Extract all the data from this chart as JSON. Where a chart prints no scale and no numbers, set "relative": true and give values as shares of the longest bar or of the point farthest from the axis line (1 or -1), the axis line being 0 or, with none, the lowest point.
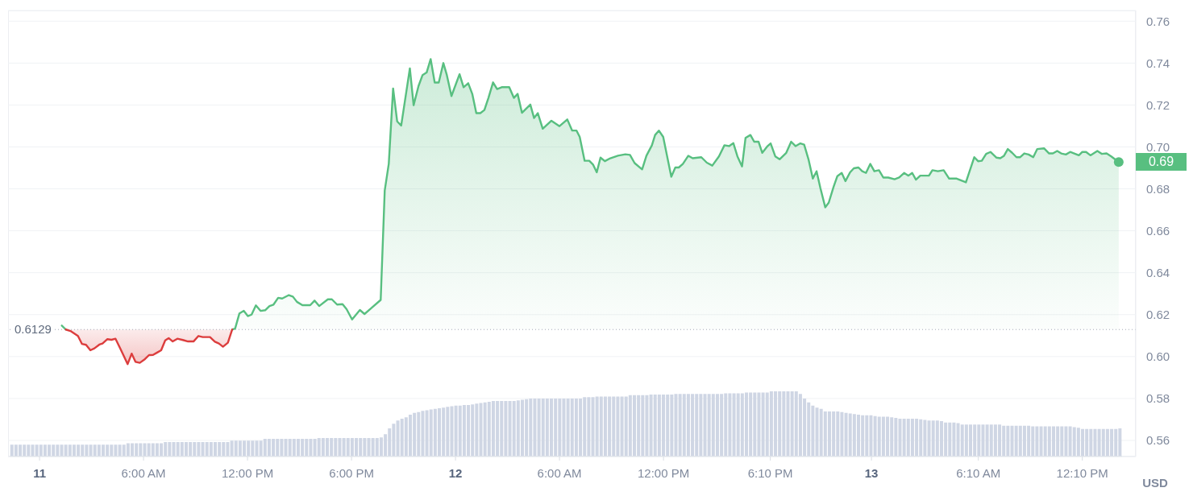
{
  "chart_data": [
    {
      "type": "area",
      "ylabel": "USD",
      "xlim": [
        "--01-10T22:11",
        "--01-13T15:15"
      ],
      "ylim": [
        0.5523,
        0.7651
      ],
      "xticks": [
        {
          "value": "--01-11T00:00",
          "label": "11"
        },
        {
          "value": "--01-11T06:00",
          "label": "6:00 AM"
        },
        {
          "value": "--01-11T12:00",
          "label": "12:00 PM"
        },
        {
          "value": "--01-11T18:00",
          "label": "6:00 PM"
        },
        {
          "value": "--01-12T00:00",
          "label": "12"
        },
        {
          "value": "--01-12T06:00",
          "label": "6:00 AM"
        },
        {
          "value": "--01-12T12:00",
          "label": "12:00 PM"
        },
        {
          "value": "--01-12T18:10",
          "label": "6:10 PM"
        },
        {
          "value": "--01-13T00:00",
          "label": "13"
        },
        {
          "value": "--01-13T06:10",
          "label": "6:10 AM"
        },
        {
          "value": "--01-13T12:10",
          "label": "12:10 PM"
        }
      ],
      "yticks": [
        0.56,
        0.58,
        {
          "value": 0.6,
          "label": "0.60"
        },
        0.62,
        0.64,
        0.66,
        0.68,
        {
          "value": 0.7,
          "label": "0.70"
        },
        0.72,
        0.74,
        0.76
      ],
      "grid": "y",
      "ref_lines": [
        {
          "axis": "y",
          "value": 0.6129,
          "label": "0.6129",
          "line_style": "dotted",
          "color": "#a3a9b6"
        }
      ],
      "annotations": [
        "0.69"
      ],
      "series": [
        {
          "color": "#58bf80",
          "x": [
            "--01-11T11:07",
            "--01-11T11:17",
            "--01-11T11:32",
            "--01-11T11:47",
            "--01-11T12:01",
            "--01-11T12:14",
            "--01-11T12:29",
            "--01-11T12:45",
            "--01-11T13:01",
            "--01-11T13:16",
            "--01-11T13:30",
            "--01-11T13:46",
            "--01-11T14:00",
            "--01-11T14:23",
            "--01-11T14:37",
            "--01-11T14:51",
            "--01-11T15:10",
            "--01-11T15:37",
            "--01-11T15:52",
            "--01-11T16:08",
            "--01-11T16:38",
            "--01-11T16:52",
            "--01-11T17:10",
            "--01-11T17:29",
            "--01-11T17:43",
            "--01-11T18:02",
            "--01-11T18:29",
            "--01-11T18:45",
            "--01-11T19:07",
            "--01-11T19:41",
            "--01-11T19:55",
            "--01-11T20:09",
            "--01-11T20:24",
            "--01-11T20:38",
            "--01-11T20:52",
            "--01-11T21:22",
            "--01-11T21:35",
            "--01-11T21:52",
            "--01-11T22:06",
            "--01-11T22:20",
            "--01-11T22:34",
            "--01-11T22:48",
            "--01-11T23:02",
            "--01-11T23:18",
            "--01-11T23:30",
            "--01-11T23:46",
            "--01-12T00:14",
            "--01-12T00:28",
            "--01-12T00:44",
            "--01-12T00:58",
            "--01-12T01:12",
            "--01-12T01:26",
            "--01-12T01:40",
            "--01-12T01:54",
            "--01-12T02:10",
            "--01-12T02:24",
            "--01-12T02:40",
            "--01-12T03:06",
            "--01-12T03:22",
            "--01-12T03:35",
            "--01-12T03:50",
            "--01-12T04:19",
            "--01-12T04:32",
            "--01-12T04:45",
            "--01-12T05:02",
            "--01-12T05:32",
            "--01-12T06:00",
            "--01-12T06:27",
            "--01-12T06:44",
            "--01-12T06:59",
            "--01-12T07:10",
            "--01-12T07:27",
            "--01-12T07:43",
            "--01-12T07:56",
            "--01-12T08:09",
            "--01-12T08:22",
            "--01-12T08:37",
            "--01-12T08:56",
            "--01-12T09:22",
            "--01-12T09:48",
            "--01-12T10:04",
            "--01-12T10:20",
            "--01-12T10:46",
            "--01-12T11:01",
            "--01-12T11:20",
            "--01-12T11:31",
            "--01-12T11:44",
            "--01-12T11:59",
            "--01-12T12:27",
            "--01-12T12:41",
            "--01-12T12:53",
            "--01-12T13:07",
            "--01-12T13:26",
            "--01-12T13:41",
            "--01-12T14:11",
            "--01-12T14:30",
            "--01-12T14:49",
            "--01-12T15:12",
            "--01-12T15:31",
            "--01-12T15:47",
            "--01-12T16:02",
            "--01-12T16:16",
            "--01-12T16:32",
            "--01-12T16:44",
            "--01-12T17:01",
            "--01-12T17:14",
            "--01-12T17:29",
            "--01-12T17:42",
            "--01-12T17:59",
            "--01-12T18:11",
            "--01-12T18:27",
            "--01-12T18:42",
            "--01-12T19:05",
            "--01-12T19:22",
            "--01-12T19:37",
            "--01-12T19:54",
            "--01-12T20:07",
            "--01-12T20:22",
            "--01-12T20:37",
            "--01-12T20:50",
            "--01-12T21:03",
            "--01-12T21:20",
            "--01-12T21:32",
            "--01-12T21:49",
            "--01-12T22:02",
            "--01-12T22:17",
            "--01-12T22:30",
            "--01-12T22:46",
            "--01-12T22:59",
            "--01-12T23:15",
            "--01-12T23:28",
            "--01-12T23:41",
            "--01-12T23:56",
            "--01-13T00:10",
            "--01-13T00:26",
            "--01-13T00:41",
            "--01-13T00:58",
            "--01-13T01:20",
            "--01-13T01:36",
            "--01-13T01:53",
            "--01-13T02:08",
            "--01-13T02:21",
            "--01-13T02:34",
            "--01-13T02:49",
            "--01-13T03:19",
            "--01-13T03:31",
            "--01-13T03:50",
            "--01-13T04:10",
            "--01-13T04:29",
            "--01-13T04:55",
            "--01-13T05:27",
            "--01-13T05:56",
            "--01-13T06:09",
            "--01-13T06:22",
            "--01-13T06:37",
            "--01-13T06:52",
            "--01-13T07:13",
            "--01-13T07:26",
            "--01-13T07:39",
            "--01-13T07:52",
            "--01-13T08:07",
            "--01-13T08:22",
            "--01-13T08:35",
            "--01-13T08:49",
            "--01-13T09:04",
            "--01-13T09:20",
            "--01-13T09:34",
            "--01-13T09:58",
            "--01-13T10:15",
            "--01-13T10:28",
            "--01-13T10:43",
            "--01-13T10:57",
            "--01-13T11:13",
            "--01-13T11:28",
            "--01-13T11:42",
            "--01-13T11:58",
            "--01-13T12:10",
            "--01-13T12:23",
            "--01-13T12:38",
            "--01-13T13:02",
            "--01-13T13:17",
            "--01-13T13:34",
            "--01-13T13:50",
            "--01-13T14:16"
          ],
          "values": [
            0.6129,
            0.6133,
            0.6206,
            0.6218,
            0.6193,
            0.62,
            0.6244,
            0.6218,
            0.6221,
            0.6241,
            0.6248,
            0.628,
            0.6277,
            0.6293,
            0.6286,
            0.6261,
            0.6245,
            0.6245,
            0.6267,
            0.6241,
            0.6273,
            0.6273,
            0.6248,
            0.625,
            0.6226,
            0.6177,
            0.6222,
            0.6203,
            0.6229,
            0.627,
            0.6792,
            0.692,
            0.7279,
            0.7122,
            0.7102,
            0.7375,
            0.7199,
            0.7291,
            0.7343,
            0.7355,
            0.7419,
            0.7307,
            0.7307,
            0.74,
            0.7343,
            0.7243,
            0.7347,
            0.7285,
            0.7304,
            0.7253,
            0.7161,
            0.7161,
            0.7176,
            0.7234,
            0.7308,
            0.7276,
            0.7285,
            0.7285,
            0.7234,
            0.7253,
            0.7163,
            0.7202,
            0.7138,
            0.7161,
            0.7087,
            0.7125,
            0.7099,
            0.7131,
            0.7078,
            0.7078,
            0.7048,
            0.6934,
            0.6934,
            0.6916,
            0.6879,
            0.6949,
            0.6932,
            0.6946,
            0.6958,
            0.6965,
            0.6962,
            0.6923,
            0.6893,
            0.6958,
            0.7008,
            0.7057,
            0.7078,
            0.7048,
            0.6858,
            0.6902,
            0.6902,
            0.6919,
            0.6958,
            0.6946,
            0.6951,
            0.6925,
            0.6911,
            0.6955,
            0.7008,
            0.7004,
            0.7018,
            0.6955,
            0.6907,
            0.7043,
            0.7057,
            0.7025,
            0.7025,
            0.6972,
            0.7002,
            0.7017,
            0.6955,
            0.6941,
            0.6972,
            0.7025,
            0.7004,
            0.7017,
            0.7011,
            0.6941,
            0.6849,
            0.6884,
            0.6805,
            0.6712,
            0.6734,
            0.681,
            0.6861,
            0.6876,
            0.6837,
            0.6879,
            0.6898,
            0.6902,
            0.6884,
            0.6876,
            0.6919,
            0.6884,
            0.6889,
            0.6854,
            0.6854,
            0.6846,
            0.6854,
            0.6876,
            0.6863,
            0.6876,
            0.6844,
            0.6863,
            0.6863,
            0.6889,
            0.6884,
            0.6889,
            0.6849,
            0.6849,
            0.6831,
            0.6951,
            0.6932,
            0.6934,
            0.6967,
            0.6976,
            0.6949,
            0.6946,
            0.6958,
            0.699,
            0.6972,
            0.6951,
            0.6951,
            0.6969,
            0.6964,
            0.6951,
            0.699,
            0.6993,
            0.6969,
            0.6969,
            0.6981,
            0.6969,
            0.6964,
            0.6976,
            0.6969,
            0.696,
            0.6976,
            0.6976,
            0.696,
            0.6981,
            0.6967,
            0.6969,
            0.6955,
            0.6928
          ]
        },
        {
          "type": "line",
          "color": "#58bf80",
          "x": [
            "--01-11T01:17",
            "--01-11T01:31"
          ],
          "values": [
            0.6148,
            0.6129
          ]
        },
        {
          "type": "line",
          "color": "#dc3d3d",
          "x": [
            "--01-11T01:31",
            "--01-11T01:47",
            "--01-11T02:13",
            "--01-11T02:27",
            "--01-11T02:41",
            "--01-11T02:56",
            "--01-11T03:10",
            "--01-11T03:27",
            "--01-11T03:38",
            "--01-11T03:55",
            "--01-11T04:09",
            "--01-11T04:23",
            "--01-11T04:41",
            "--01-11T05:05",
            "--01-11T05:19",
            "--01-11T05:32",
            "--01-11T05:47",
            "--01-11T06:05",
            "--01-11T06:19",
            "--01-11T06:33",
            "--01-11T06:47",
            "--01-11T07:01",
            "--01-11T07:15",
            "--01-11T07:27",
            "--01-11T07:41",
            "--01-11T07:57",
            "--01-11T08:16",
            "--01-11T08:34",
            "--01-11T08:53",
            "--01-11T09:10",
            "--01-11T09:25",
            "--01-11T09:50",
            "--01-11T10:07",
            "--01-11T10:21",
            "--01-11T10:35",
            "--01-11T10:52",
            "--01-11T11:07"
          ],
          "values": [
            0.6129,
            0.6122,
            0.6098,
            0.606,
            0.6056,
            0.603,
            0.6039,
            0.6057,
            0.6062,
            0.6083,
            0.608,
            0.6085,
            0.6034,
            0.5964,
            0.6014,
            0.5975,
            0.597,
            0.5988,
            0.6007,
            0.6008,
            0.6019,
            0.603,
            0.6077,
            0.6088,
            0.6072,
            0.6085,
            0.6079,
            0.6072,
            0.6072,
            0.6098,
            0.6093,
            0.6093,
            0.6071,
            0.6062,
            0.6047,
            0.6066,
            0.6129
          ],
          "lower": [
            0.6129,
            0.6122,
            0.6098,
            0.606,
            0.6056,
            0.603,
            0.6039,
            0.6057,
            0.6062,
            0.6083,
            0.608,
            0.6085,
            0.6034,
            0.5964,
            0.6014,
            0.5975,
            0.597,
            0.5988,
            0.6007,
            0.6008,
            0.6019,
            0.603,
            0.6077,
            0.6088,
            0.6072,
            0.6085,
            0.6079,
            0.6072,
            0.6072,
            0.6098,
            0.6093,
            0.6093,
            0.6071,
            0.6062,
            0.6047,
            0.6066,
            0.6129
          ],
          "upper": [
            0.6129,
            0.6129,
            0.6129,
            0.6129,
            0.6129,
            0.6129,
            0.6129,
            0.6129,
            0.6129,
            0.6129,
            0.6129,
            0.6129,
            0.6129,
            0.6129,
            0.6129,
            0.6129,
            0.6129,
            0.6129,
            0.6129,
            0.6129,
            0.6129,
            0.6129,
            0.6129,
            0.6129,
            0.6129,
            0.6129,
            0.6129,
            0.6129,
            0.6129,
            0.6129,
            0.6129,
            0.6129,
            0.6129,
            0.6129,
            0.6129,
            0.6129,
            0.6129
          ]
        },
        {
          "type": "scatter",
          "color": "#58bf80",
          "marker": "circle",
          "x": [
            "--01-13T14:16"
          ],
          "values": [
            0.6928
          ]
        }
      ]
    },
    {
      "type": "bar",
      "relative": true,
      "tick_labels": false,
      "color": "#cfd6e4",
      "categories": [
        null,
        null,
        null,
        null,
        null,
        null,
        null,
        null,
        null,
        null,
        null,
        null,
        null,
        null,
        null,
        null,
        null,
        null,
        null,
        null,
        null,
        null,
        null,
        null,
        null,
        null,
        null,
        null,
        null,
        null,
        null,
        null,
        null,
        null,
        null,
        null,
        null,
        null,
        null,
        null,
        null,
        null,
        null,
        null,
        null,
        null,
        null,
        null,
        null,
        null,
        null,
        null,
        null,
        null,
        null,
        null,
        null,
        null,
        null,
        null,
        null,
        null,
        null,
        null,
        null,
        null,
        null,
        null,
        null,
        null,
        null,
        null,
        null,
        null,
        null,
        null,
        null,
        null,
        null,
        null,
        null,
        null,
        null,
        null,
        null,
        null,
        null,
        null,
        null,
        null,
        null,
        null,
        null,
        null,
        null,
        null,
        null,
        null,
        null,
        null,
        null,
        null,
        null,
        null,
        null,
        null,
        null,
        null,
        null,
        null,
        null,
        null,
        null,
        null,
        null,
        null,
        null,
        null,
        null,
        null,
        null,
        null,
        null,
        null,
        null,
        null,
        null,
        null,
        null,
        null,
        null,
        null,
        null,
        null,
        null,
        null,
        null,
        null,
        null,
        null,
        null,
        null,
        null,
        null,
        null,
        null,
        null,
        null,
        null,
        null,
        null,
        null,
        null,
        null,
        null,
        null,
        null,
        null,
        null,
        null,
        null,
        null,
        null,
        null,
        null,
        null,
        null,
        null,
        null,
        null,
        null,
        null,
        null,
        null,
        null,
        null,
        null,
        null,
        null,
        null,
        null,
        null,
        null,
        null,
        null,
        null,
        null,
        null,
        null,
        null,
        null,
        null,
        null,
        null,
        null,
        null,
        null,
        null,
        null,
        null,
        null,
        null,
        null,
        null,
        null,
        null,
        null,
        null,
        null,
        null,
        null,
        null,
        null,
        null,
        null,
        null,
        null,
        null,
        null,
        null,
        null,
        null,
        null,
        null,
        null,
        null,
        null,
        null,
        null,
        null,
        null,
        null,
        null,
        null,
        null,
        null,
        null,
        null,
        null,
        null,
        null,
        null,
        null,
        null,
        null,
        null,
        null,
        null,
        null,
        null,
        null,
        null,
        null,
        null,
        null,
        null,
        null,
        null,
        null,
        null,
        null,
        null,
        null,
        null,
        null,
        null,
        null,
        null
      ],
      "values": [
        0.18,
        0.18,
        0.18,
        0.18,
        0.18,
        0.18,
        0.18,
        0.18,
        0.18,
        0.18,
        0.18,
        0.18,
        0.18,
        0.18,
        0.18,
        0.18,
        0.18,
        0.18,
        0.18,
        0.18,
        0.18,
        0.18,
        0.18,
        0.18,
        0.18,
        0.18,
        0.18,
        0.18,
        0.2,
        0.2,
        0.2,
        0.2,
        0.2,
        0.2,
        0.2,
        0.2,
        0.2,
        0.22,
        0.22,
        0.22,
        0.22,
        0.22,
        0.22,
        0.22,
        0.22,
        0.22,
        0.22,
        0.22,
        0.22,
        0.22,
        0.22,
        0.22,
        0.22,
        0.24,
        0.24,
        0.24,
        0.24,
        0.24,
        0.24,
        0.24,
        0.24,
        0.27,
        0.27,
        0.27,
        0.27,
        0.27,
        0.27,
        0.27,
        0.27,
        0.27,
        0.27,
        0.27,
        0.27,
        0.27,
        0.28,
        0.28,
        0.28,
        0.28,
        0.28,
        0.28,
        0.28,
        0.28,
        0.28,
        0.28,
        0.28,
        0.28,
        0.28,
        0.28,
        0.28,
        0.29,
        0.34,
        0.43,
        0.5,
        0.55,
        0.58,
        0.6,
        0.64,
        0.67,
        0.68,
        0.7,
        0.71,
        0.72,
        0.73,
        0.74,
        0.75,
        0.76,
        0.77,
        0.78,
        0.78,
        0.79,
        0.79,
        0.8,
        0.81,
        0.82,
        0.83,
        0.84,
        0.85,
        0.85,
        0.85,
        0.85,
        0.85,
        0.85,
        0.86,
        0.87,
        0.88,
        0.89,
        0.89,
        0.89,
        0.89,
        0.89,
        0.89,
        0.89,
        0.89,
        0.89,
        0.89,
        0.89,
        0.89,
        0.89,
        0.91,
        0.91,
        0.91,
        0.92,
        0.92,
        0.92,
        0.92,
        0.92,
        0.92,
        0.92,
        0.92,
        0.94,
        0.94,
        0.94,
        0.94,
        0.94,
        0.95,
        0.95,
        0.95,
        0.95,
        0.95,
        0.95,
        0.96,
        0.96,
        0.96,
        0.96,
        0.96,
        0.96,
        0.96,
        0.96,
        0.96,
        0.96,
        0.96,
        0.96,
        0.97,
        0.97,
        0.97,
        0.97,
        0.97,
        0.98,
        0.98,
        0.98,
        0.98,
        0.98,
        0.98,
        1,
        1,
        1,
        1,
        1,
        1,
        1,
        0.96,
        0.89,
        0.83,
        0.78,
        0.75,
        0.73,
        0.69,
        0.69,
        0.69,
        0.69,
        0.68,
        0.67,
        0.66,
        0.65,
        0.64,
        0.63,
        0.63,
        0.63,
        0.62,
        0.61,
        0.61,
        0.61,
        0.6,
        0.59,
        0.58,
        0.58,
        0.58,
        0.58,
        0.58,
        0.57,
        0.56,
        0.55,
        0.55,
        0.55,
        0.54,
        0.52,
        0.52,
        0.52,
        0.51,
        0.49,
        0.49,
        0.49,
        0.49,
        0.49,
        0.49,
        0.49,
        0.49,
        0.49,
        0.49,
        0.47,
        0.47,
        0.47,
        0.47,
        0.47,
        0.47,
        0.47,
        0.46,
        0.46,
        0.46,
        0.46,
        0.46,
        0.46,
        0.46,
        0.46,
        0.46,
        0.46,
        0.45,
        0.44,
        0.42,
        0.42,
        0.42,
        0.42,
        0.42,
        0.42,
        0.42,
        0.42,
        0.42,
        0.43
      ]
    }
  ]
}
